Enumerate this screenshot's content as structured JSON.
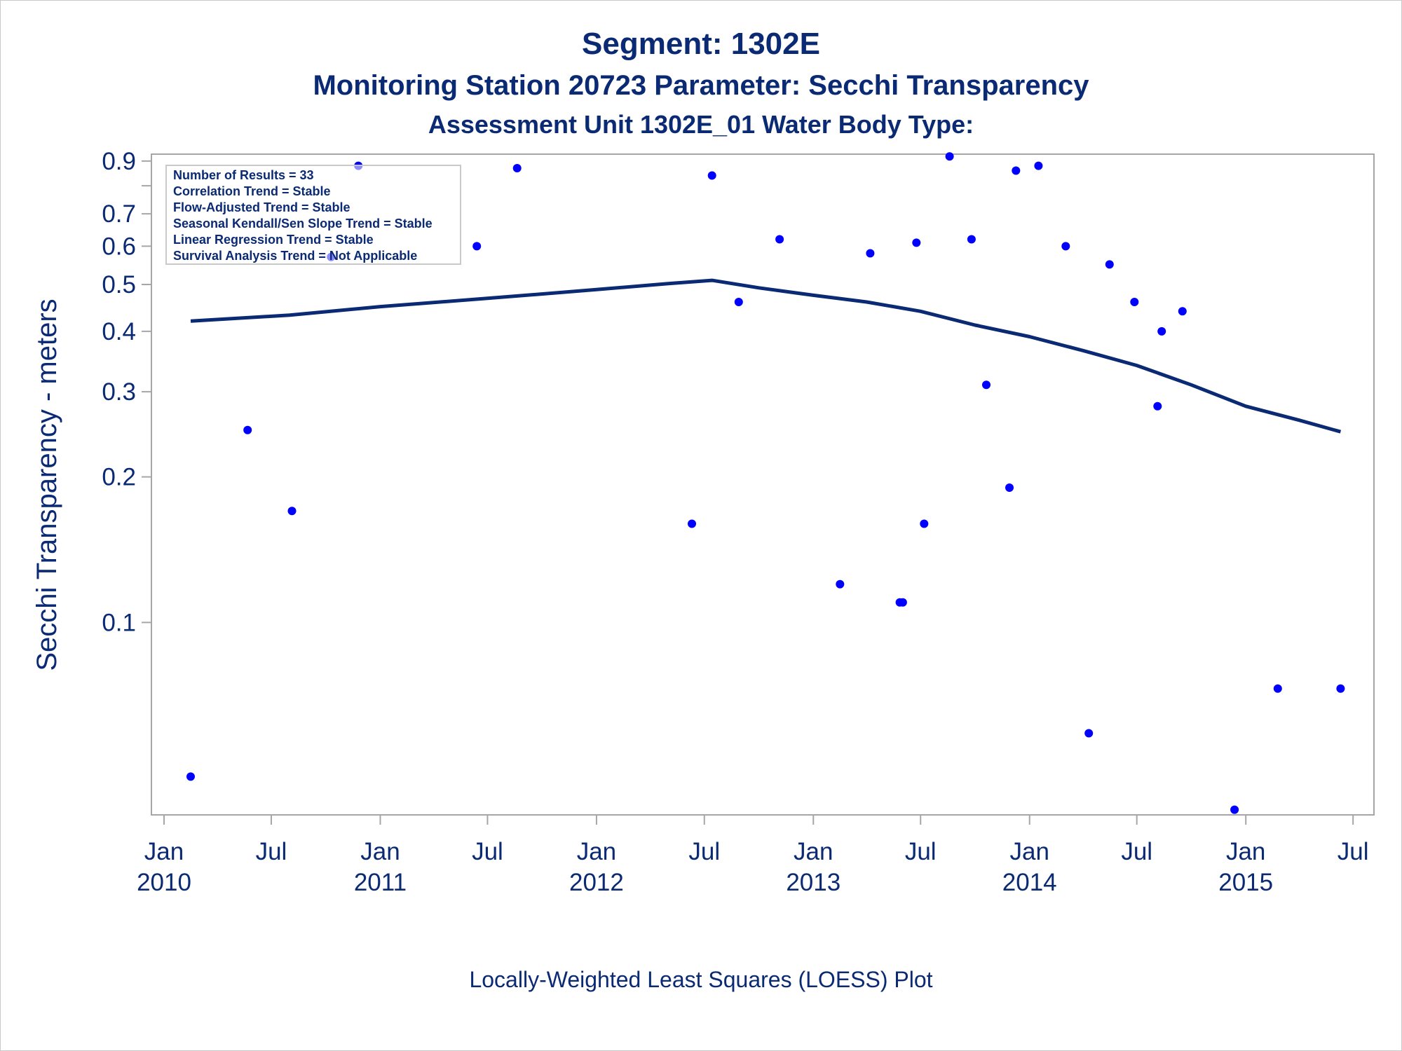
{
  "titles": {
    "line1": "Segment: 1302E",
    "line2": "Monitoring Station 20723 Parameter: Secchi Transparency",
    "line3": "Assessment Unit 1302E_01   Water Body Type:"
  },
  "footnote": "Locally-Weighted Least Squares (LOESS) Plot",
  "stats_box": [
    "Number of Results = 33",
    "Correlation Trend = Stable",
    "Flow-Adjusted Trend = Stable",
    "Seasonal Kendall/Sen Slope Trend = Stable",
    "Linear Regression Trend = Stable",
    "Survival Analysis Trend = Not Applicable"
  ],
  "colors": {
    "points": "#0000ff",
    "loess": "#0b2a74",
    "text": "#0b2a74",
    "frame": "#a6a6a6"
  },
  "chart_data": {
    "type": "scatter",
    "ylabel": "Secchi Transparency - meters",
    "xlabel": "",
    "y_scale": "log",
    "ylim": [
      0.04,
      0.93
    ],
    "xlim": [
      "2010-01-01",
      "2015-07-15"
    ],
    "y_ticks": [
      {
        "value": 0.9,
        "label": "0.9"
      },
      {
        "value": 0.8,
        "label": ""
      },
      {
        "value": 0.7,
        "label": "0.7"
      },
      {
        "value": 0.6,
        "label": "0.6"
      },
      {
        "value": 0.5,
        "label": "0.5"
      },
      {
        "value": 0.4,
        "label": "0.4"
      },
      {
        "value": 0.3,
        "label": "0.3"
      },
      {
        "value": 0.2,
        "label": "0.2"
      },
      {
        "value": 0.1,
        "label": "0.1"
      }
    ],
    "x_ticks": [
      {
        "date": "2010-01-01",
        "label": [
          "Jan",
          "2010"
        ]
      },
      {
        "date": "2010-07-01",
        "label": [
          "Jul",
          ""
        ]
      },
      {
        "date": "2011-01-01",
        "label": [
          "Jan",
          "2011"
        ]
      },
      {
        "date": "2011-07-01",
        "label": [
          "Jul",
          ""
        ]
      },
      {
        "date": "2012-01-01",
        "label": [
          "Jan",
          "2012"
        ]
      },
      {
        "date": "2012-07-01",
        "label": [
          "Jul",
          ""
        ]
      },
      {
        "date": "2013-01-01",
        "label": [
          "Jan",
          "2013"
        ]
      },
      {
        "date": "2013-07-01",
        "label": [
          "Jul",
          ""
        ]
      },
      {
        "date": "2014-01-01",
        "label": [
          "Jan",
          "2014"
        ]
      },
      {
        "date": "2014-07-01",
        "label": [
          "Jul",
          ""
        ]
      },
      {
        "date": "2015-01-01",
        "label": [
          "Jan",
          "2015"
        ]
      },
      {
        "date": "2015-07-01",
        "label": [
          "Jul",
          ""
        ]
      }
    ],
    "points": [
      {
        "x": "2010-02-15",
        "y": 0.048
      },
      {
        "x": "2010-05-22",
        "y": 0.25
      },
      {
        "x": "2010-08-05",
        "y": 0.17
      },
      {
        "x": "2010-10-10",
        "y": 0.57
      },
      {
        "x": "2010-11-25",
        "y": 0.88
      },
      {
        "x": "2011-06-13",
        "y": 0.6
      },
      {
        "x": "2011-08-20",
        "y": 0.87
      },
      {
        "x": "2012-06-10",
        "y": 0.16
      },
      {
        "x": "2012-07-14",
        "y": 0.84
      },
      {
        "x": "2012-08-28",
        "y": 0.46
      },
      {
        "x": "2012-11-05",
        "y": 0.62
      },
      {
        "x": "2013-02-15",
        "y": 0.12
      },
      {
        "x": "2013-04-07",
        "y": 0.58
      },
      {
        "x": "2013-05-27",
        "y": 0.11
      },
      {
        "x": "2013-06-01",
        "y": 0.11
      },
      {
        "x": "2013-06-24",
        "y": 0.61
      },
      {
        "x": "2013-07-07",
        "y": 0.16
      },
      {
        "x": "2013-08-19",
        "y": 0.92
      },
      {
        "x": "2013-09-25",
        "y": 0.62
      },
      {
        "x": "2013-10-20",
        "y": 0.31
      },
      {
        "x": "2013-11-28",
        "y": 0.19
      },
      {
        "x": "2013-12-09",
        "y": 0.86
      },
      {
        "x": "2014-01-16",
        "y": 0.88
      },
      {
        "x": "2014-03-03",
        "y": 0.6
      },
      {
        "x": "2014-04-11",
        "y": 0.059
      },
      {
        "x": "2014-05-16",
        "y": 0.55
      },
      {
        "x": "2014-06-27",
        "y": 0.46
      },
      {
        "x": "2014-08-05",
        "y": 0.28
      },
      {
        "x": "2014-08-12",
        "y": 0.4
      },
      {
        "x": "2014-09-16",
        "y": 0.44
      },
      {
        "x": "2014-12-13",
        "y": 0.041
      },
      {
        "x": "2015-02-24",
        "y": 0.073
      },
      {
        "x": "2015-06-10",
        "y": 0.073
      }
    ],
    "loess_curve": [
      {
        "x": "2010-02-15",
        "y": 0.42
      },
      {
        "x": "2010-08-01",
        "y": 0.432
      },
      {
        "x": "2011-01-01",
        "y": 0.45
      },
      {
        "x": "2011-07-01",
        "y": 0.468
      },
      {
        "x": "2012-01-01",
        "y": 0.488
      },
      {
        "x": "2012-05-01",
        "y": 0.502
      },
      {
        "x": "2012-07-14",
        "y": 0.51
      },
      {
        "x": "2012-10-01",
        "y": 0.492
      },
      {
        "x": "2013-01-01",
        "y": 0.475
      },
      {
        "x": "2013-04-01",
        "y": 0.46
      },
      {
        "x": "2013-07-01",
        "y": 0.44
      },
      {
        "x": "2013-10-01",
        "y": 0.412
      },
      {
        "x": "2014-01-01",
        "y": 0.39
      },
      {
        "x": "2014-04-01",
        "y": 0.365
      },
      {
        "x": "2014-07-01",
        "y": 0.34
      },
      {
        "x": "2014-10-01",
        "y": 0.31
      },
      {
        "x": "2015-01-01",
        "y": 0.28
      },
      {
        "x": "2015-04-01",
        "y": 0.262
      },
      {
        "x": "2015-06-10",
        "y": 0.248
      }
    ],
    "grid": false,
    "legend": "none"
  }
}
